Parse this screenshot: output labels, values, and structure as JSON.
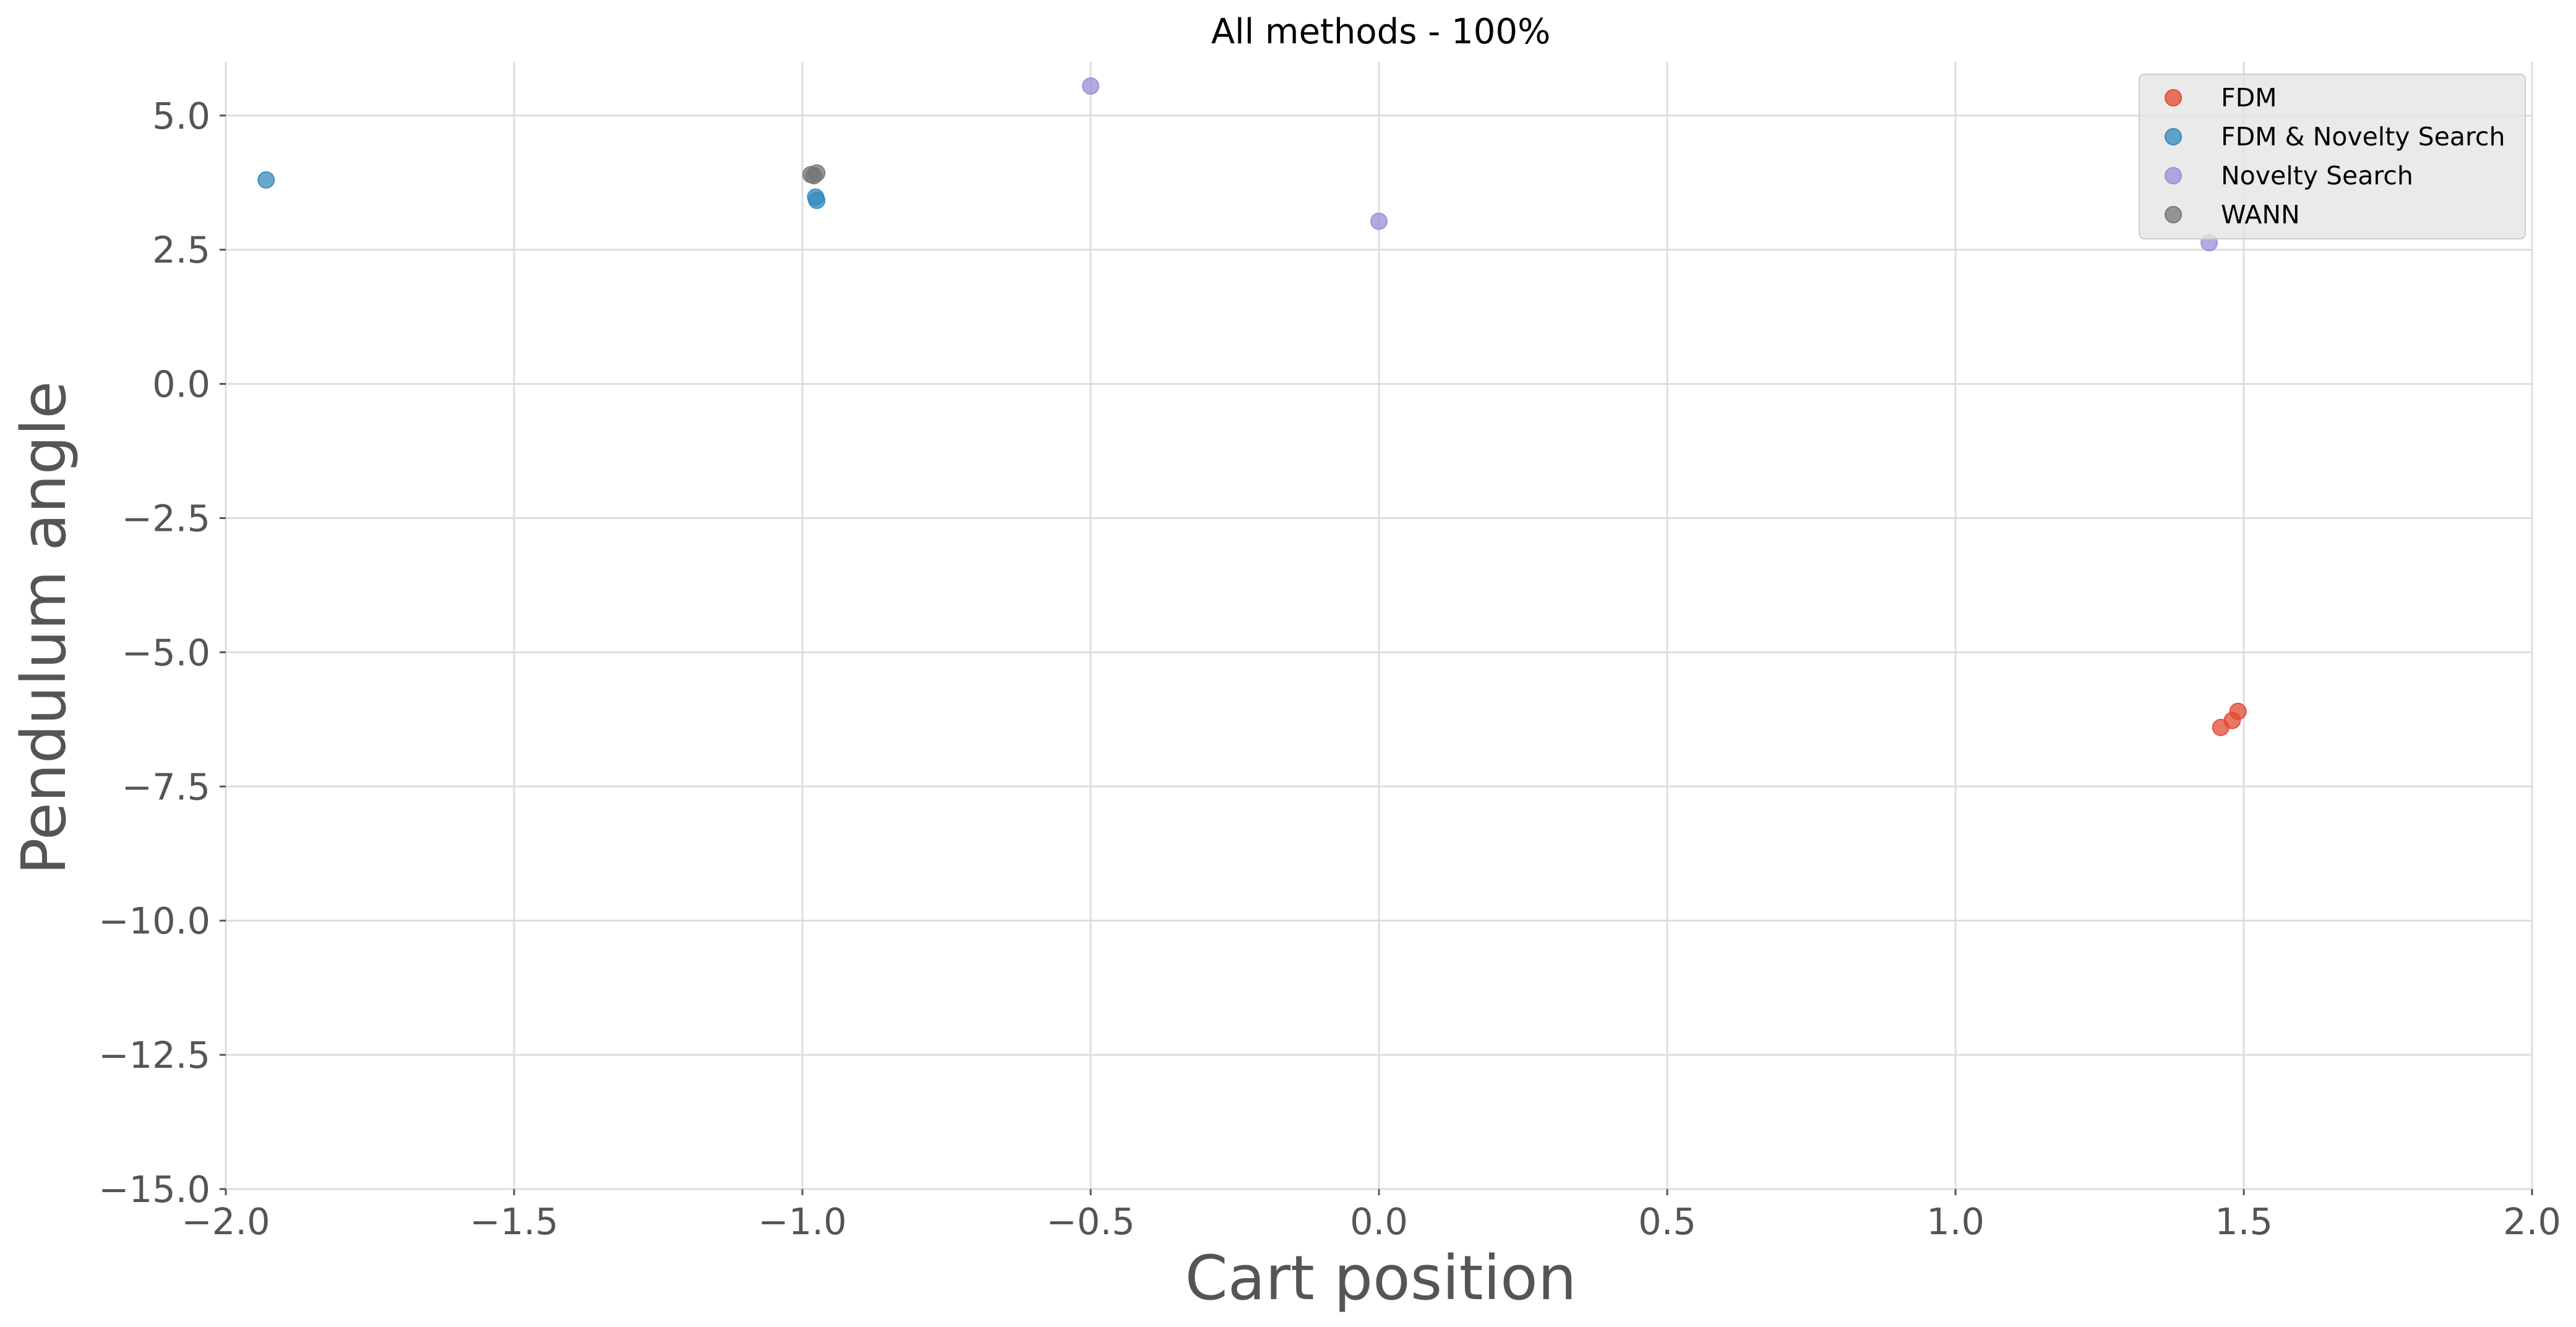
{
  "chart_data": {
    "type": "scatter",
    "title": "All methods - 100%",
    "xlabel": "Cart position",
    "ylabel": "Pendulum angle",
    "xlim": [
      -2.0,
      2.0
    ],
    "ylim": [
      -15.0,
      6.0
    ],
    "xticks": [
      -2.0,
      -1.5,
      -1.0,
      -0.5,
      0.0,
      0.5,
      1.0,
      1.5,
      2.0
    ],
    "xtick_labels": [
      "−2.0",
      "−1.5",
      "−1.0",
      "−0.5",
      "0.0",
      "0.5",
      "1.0",
      "1.5",
      "2.0"
    ],
    "yticks": [
      5.0,
      2.5,
      0.0,
      -2.5,
      -5.0,
      -7.5,
      -10.0,
      -12.5,
      -15.0
    ],
    "ytick_labels": [
      "5.0",
      "2.5",
      "0.0",
      "−2.5",
      "−5.0",
      "−7.5",
      "−10.0",
      "−12.5",
      "−15.0"
    ],
    "grid": true,
    "legend_position": "top-right",
    "series": [
      {
        "name": "FDM",
        "color": "#E24A33",
        "points": [
          [
            1.46,
            -6.4
          ],
          [
            1.48,
            -6.27
          ],
          [
            1.49,
            -6.1
          ]
        ]
      },
      {
        "name": "FDM & Novelty Search",
        "color": "#348ABD",
        "points": [
          [
            -1.93,
            3.8
          ],
          [
            -0.977,
            3.48
          ],
          [
            -0.975,
            3.42
          ]
        ]
      },
      {
        "name": "Novelty Search",
        "color": "#988ED5",
        "points": [
          [
            -0.5,
            5.55
          ],
          [
            0.0,
            3.03
          ],
          [
            1.44,
            2.63
          ]
        ]
      },
      {
        "name": "WANN",
        "color": "#777777",
        "points": [
          [
            -0.985,
            3.9
          ],
          [
            -0.975,
            3.93
          ],
          [
            -0.98,
            3.88
          ]
        ]
      }
    ]
  }
}
